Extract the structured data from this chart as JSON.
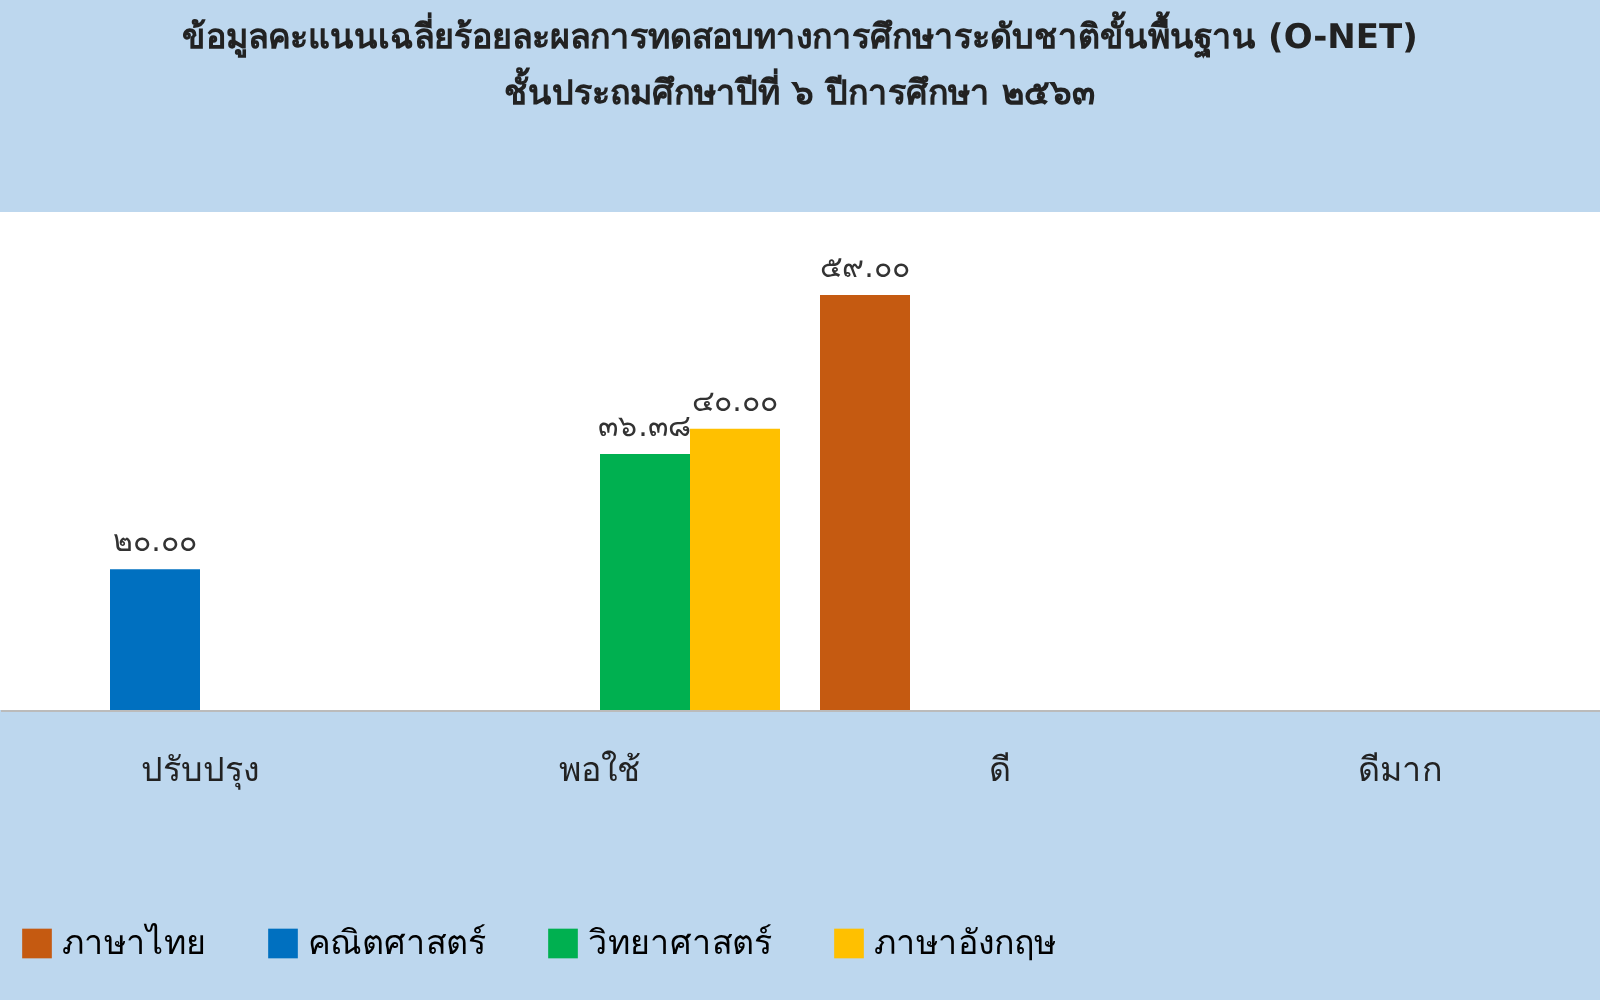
{
  "chart_data": {
    "type": "bar",
    "title": [
      "ข้อมูลคะแนนเฉลี่ยร้อยละผลการทดสอบทางการศึกษาระดับชาติขั้นพื้นฐาน  (O-NET)",
      "ชั้นประถมศึกษาปีที่  ๖  ปีการศึกษา  ๒๕๖๓"
    ],
    "categories": [
      "ปรับปรุง",
      "พอใช้",
      "ดี",
      "ดีมาก"
    ],
    "series": [
      {
        "name": "ภาษาไทย",
        "color": "#c55a11",
        "values": [
          null,
          null,
          59.0,
          null
        ],
        "value_labels": [
          null,
          null,
          "๕๙.๐๐",
          null
        ]
      },
      {
        "name": "คณิตศาสตร์",
        "color": "#0070c0",
        "values": [
          20.0,
          null,
          null,
          null
        ],
        "value_labels": [
          "๒๐.๐๐",
          null,
          null,
          null
        ]
      },
      {
        "name": "วิทยาศาสตร์",
        "color": "#00b050",
        "values": [
          null,
          36.38,
          null,
          null
        ],
        "value_labels": [
          null,
          "๓๖.๓๘",
          null,
          null
        ]
      },
      {
        "name": "ภาษาอังกฤษ",
        "color": "#ffc000",
        "values": [
          null,
          40.0,
          null,
          null
        ],
        "value_labels": [
          null,
          "๔๐.๐๐",
          null,
          null
        ]
      }
    ],
    "legend": "bottom",
    "grid": false
  }
}
